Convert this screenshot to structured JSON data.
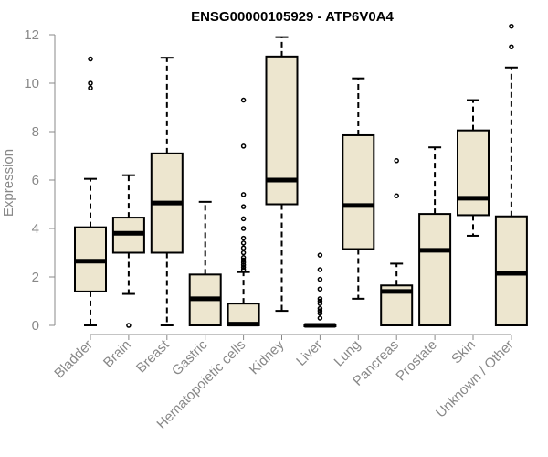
{
  "chart_data": {
    "type": "boxplot",
    "title": "ENSG00000105929 - ATP6V0A4",
    "xlabel": "",
    "ylabel": "Expression",
    "ylim": [
      0,
      12
    ],
    "yticks": [
      0,
      2,
      4,
      6,
      8,
      10,
      12
    ],
    "box_fill": "#ede6cf",
    "box_stroke": "#000000",
    "text_color": "#888888",
    "categories": [
      "Bladder",
      "Brain",
      "Breast",
      "Gastric",
      "Hematopoietic cells",
      "Kidney",
      "Liver",
      "Lung",
      "Pancreas",
      "Prostate",
      "Skin",
      "Unknown / Other"
    ],
    "boxes": [
      {
        "category": "Bladder",
        "whisker_low": 0.0,
        "q1": 1.4,
        "median": 2.65,
        "q3": 4.05,
        "whisker_high": 6.05,
        "outliers": [
          9.8,
          10.0,
          11.0
        ]
      },
      {
        "category": "Brain",
        "whisker_low": 1.3,
        "q1": 3.0,
        "median": 3.8,
        "q3": 4.45,
        "whisker_high": 6.2,
        "outliers": [
          0.0
        ]
      },
      {
        "category": "Breast",
        "whisker_low": 0.0,
        "q1": 3.0,
        "median": 5.05,
        "q3": 7.1,
        "whisker_high": 11.05,
        "outliers": []
      },
      {
        "category": "Gastric",
        "whisker_low": 0.0,
        "q1": 0.0,
        "median": 1.1,
        "q3": 2.1,
        "whisker_high": 5.1,
        "outliers": []
      },
      {
        "category": "Hematopoietic cells",
        "whisker_low": 0.0,
        "q1": 0.0,
        "median": 0.05,
        "q3": 0.9,
        "whisker_high": 2.2,
        "outliers": [
          2.3,
          2.4,
          2.5,
          2.6,
          2.7,
          2.8,
          3.0,
          3.2,
          3.4,
          3.6,
          4.0,
          4.4,
          4.9,
          5.4,
          7.4,
          9.3
        ]
      },
      {
        "category": "Kidney",
        "whisker_low": 0.6,
        "q1": 5.0,
        "median": 6.0,
        "q3": 11.1,
        "whisker_high": 11.9,
        "outliers": []
      },
      {
        "category": "Liver",
        "whisker_low": 0.0,
        "q1": 0.0,
        "median": 0.0,
        "q3": 0.0,
        "whisker_high": 0.0,
        "outliers": [
          0.3,
          0.5,
          0.6,
          0.7,
          0.9,
          1.0,
          1.1,
          1.5,
          1.9,
          2.3,
          2.9
        ]
      },
      {
        "category": "Lung",
        "whisker_low": 1.1,
        "q1": 3.15,
        "median": 4.95,
        "q3": 7.85,
        "whisker_high": 10.2,
        "outliers": []
      },
      {
        "category": "Pancreas",
        "whisker_low": 0.0,
        "q1": 0.0,
        "median": 1.4,
        "q3": 1.65,
        "whisker_high": 2.55,
        "outliers": [
          5.35,
          6.8
        ]
      },
      {
        "category": "Prostate",
        "whisker_low": 0.0,
        "q1": 0.0,
        "median": 3.1,
        "q3": 4.6,
        "whisker_high": 7.35,
        "outliers": []
      },
      {
        "category": "Skin",
        "whisker_low": 3.7,
        "q1": 4.55,
        "median": 5.25,
        "q3": 8.05,
        "whisker_high": 9.3,
        "outliers": []
      },
      {
        "category": "Unknown / Other",
        "whisker_low": 0.0,
        "q1": 0.0,
        "median": 2.15,
        "q3": 4.5,
        "whisker_high": 10.65,
        "outliers": [
          11.5,
          12.35
        ]
      }
    ]
  }
}
